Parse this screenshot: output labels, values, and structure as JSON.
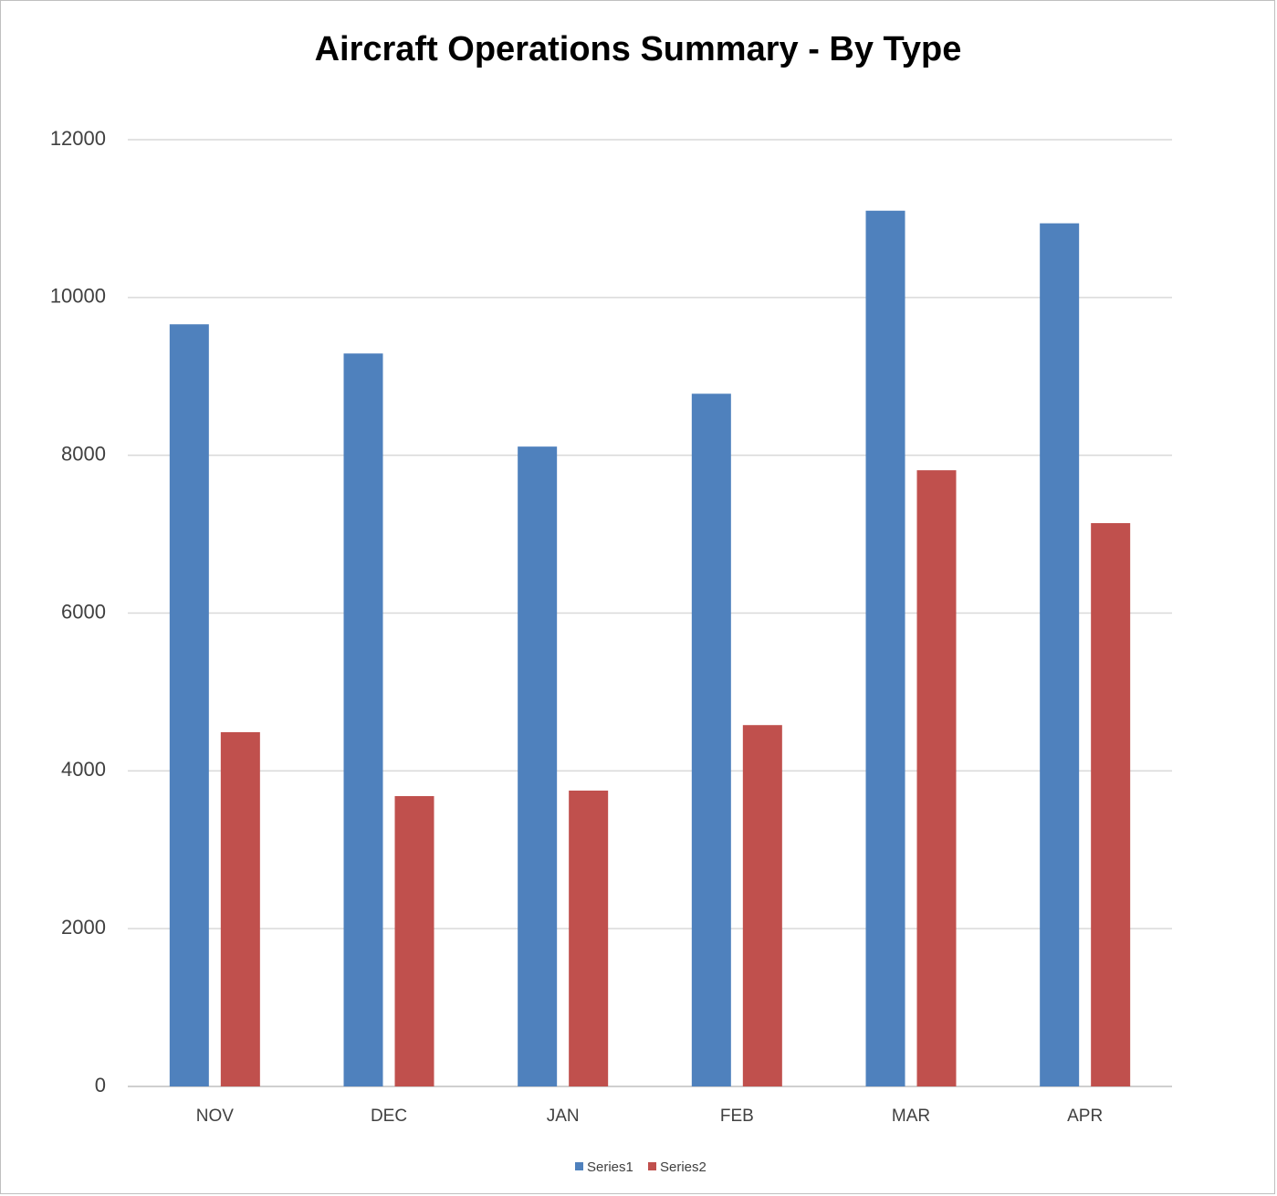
{
  "chart_data": {
    "type": "bar",
    "title": "Aircraft Operations Summary - By Type",
    "categories": [
      "NOV",
      "DEC",
      "JAN",
      "FEB",
      "MAR",
      "APR"
    ],
    "series": [
      {
        "name": "Series1",
        "color": "#4f81bd",
        "values": [
          9660,
          9290,
          8110,
          8780,
          11100,
          10940
        ]
      },
      {
        "name": "Series2",
        "color": "#c0504d",
        "values": [
          4490,
          3680,
          3750,
          4580,
          7810,
          7140
        ]
      }
    ],
    "ylim": [
      0,
      12000
    ],
    "yticks": [
      0,
      2000,
      4000,
      6000,
      8000,
      10000,
      12000
    ],
    "grid": true,
    "legend": "bottom"
  }
}
